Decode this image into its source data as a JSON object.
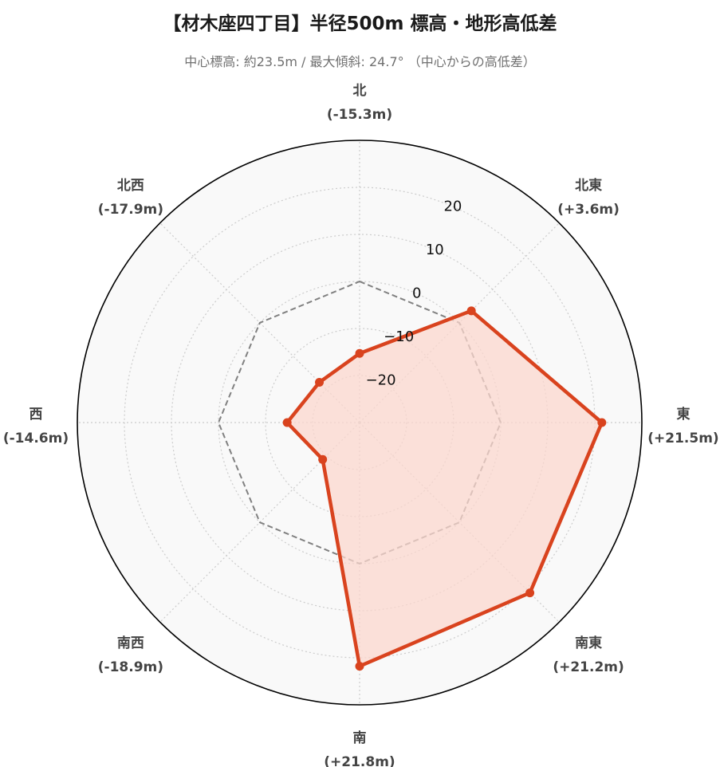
{
  "title": "【材木座四丁目】半径500m 標高・地形高低差",
  "subtitle": "中心標高: 約23.5m / 最大傾斜: 24.7° （中心からの高低差）",
  "colors": {
    "series": "#d9431e",
    "series_fill": "#fbd7cd",
    "reference": "#808080",
    "background": "#f9f9f9",
    "outline": "#000000",
    "grid": "#cccccc"
  },
  "chart_data": {
    "type": "radar",
    "categories": [
      "北",
      "北東",
      "東",
      "南東",
      "南",
      "南西",
      "西",
      "北西"
    ],
    "category_value_labels": [
      "(-15.3m)",
      "(+3.6m)",
      "(+21.5m)",
      "(+21.2m)",
      "(+21.8m)",
      "(-18.9m)",
      "(-14.6m)",
      "(-17.9m)"
    ],
    "series": [
      {
        "values": [
          -15.3,
          3.6,
          21.5,
          21.2,
          21.8,
          -18.9,
          -14.6,
          -17.9
        ]
      }
    ],
    "reference_line": {
      "value": 0,
      "style": "dashed"
    },
    "radial_range": [
      -30,
      30
    ],
    "radial_ticks": [
      -20,
      -10,
      0,
      10,
      20
    ],
    "radial_tick_labels": [
      "−20",
      "−10",
      "0",
      "10",
      "20"
    ],
    "grid": true,
    "legend": "none"
  }
}
